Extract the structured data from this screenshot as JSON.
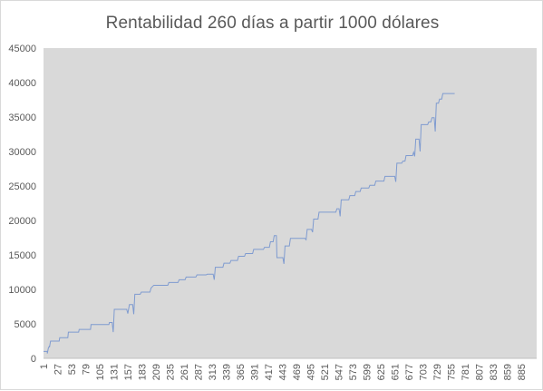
{
  "chart_data": {
    "type": "line",
    "title": "Rentabilidad 260 días a partir 1000 dólares",
    "xlabel": "",
    "ylabel": "",
    "xlim": [
      1,
      907
    ],
    "ylim": [
      0,
      45000
    ],
    "y_ticks": [
      0,
      5000,
      10000,
      15000,
      20000,
      25000,
      30000,
      35000,
      40000,
      45000
    ],
    "x_ticks": [
      1,
      27,
      53,
      79,
      105,
      131,
      157,
      183,
      209,
      235,
      261,
      287,
      313,
      339,
      365,
      391,
      417,
      443,
      469,
      495,
      521,
      547,
      573,
      599,
      625,
      651,
      677,
      703,
      729,
      755,
      781,
      807,
      833,
      859,
      885
    ],
    "grid": false,
    "legend": "none",
    "plot_background": "#d9d9d9",
    "series": [
      {
        "color": "#7f9bd0",
        "points": [
          [
            1,
            1000
          ],
          [
            8,
            1000
          ],
          [
            8,
            700
          ],
          [
            10,
            1500
          ],
          [
            12,
            1800
          ],
          [
            12,
            1600
          ],
          [
            14,
            2500
          ],
          [
            30,
            2500
          ],
          [
            31,
            3000
          ],
          [
            46,
            3000
          ],
          [
            47,
            3800
          ],
          [
            66,
            3800
          ],
          [
            67,
            4200
          ],
          [
            88,
            4200
          ],
          [
            89,
            4900
          ],
          [
            122,
            4900
          ],
          [
            123,
            5200
          ],
          [
            128,
            5200
          ],
          [
            130,
            3800
          ],
          [
            132,
            7100
          ],
          [
            155,
            7100
          ],
          [
            157,
            6500
          ],
          [
            160,
            7800
          ],
          [
            166,
            7800
          ],
          [
            168,
            6400
          ],
          [
            170,
            9300
          ],
          [
            180,
            9300
          ],
          [
            182,
            9600
          ],
          [
            198,
            9600
          ],
          [
            200,
            10200
          ],
          [
            205,
            10600
          ],
          [
            231,
            10600
          ],
          [
            233,
            11000
          ],
          [
            250,
            11000
          ],
          [
            252,
            11400
          ],
          [
            263,
            11400
          ],
          [
            265,
            11800
          ],
          [
            283,
            11800
          ],
          [
            285,
            12100
          ],
          [
            302,
            12100
          ],
          [
            304,
            12200
          ],
          [
            315,
            12200
          ],
          [
            317,
            11400
          ],
          [
            319,
            13200
          ],
          [
            333,
            13200
          ],
          [
            335,
            13800
          ],
          [
            346,
            13800
          ],
          [
            348,
            14200
          ],
          [
            360,
            14200
          ],
          [
            362,
            14800
          ],
          [
            373,
            14800
          ],
          [
            375,
            15200
          ],
          [
            388,
            15200
          ],
          [
            390,
            15800
          ],
          [
            408,
            15800
          ],
          [
            410,
            16100
          ],
          [
            419,
            16100
          ],
          [
            421,
            16900
          ],
          [
            426,
            16900
          ],
          [
            428,
            17800
          ],
          [
            432,
            17800
          ],
          [
            433,
            14600
          ],
          [
            444,
            14600
          ],
          [
            446,
            13700
          ],
          [
            448,
            16300
          ],
          [
            456,
            16300
          ],
          [
            458,
            17400
          ],
          [
            485,
            17400
          ],
          [
            487,
            17200
          ],
          [
            489,
            18700
          ],
          [
            497,
            18700
          ],
          [
            499,
            18300
          ],
          [
            501,
            20200
          ],
          [
            509,
            20200
          ],
          [
            511,
            21200
          ],
          [
            542,
            21200
          ],
          [
            544,
            21700
          ],
          [
            548,
            21700
          ],
          [
            550,
            20600
          ],
          [
            552,
            23000
          ],
          [
            566,
            23000
          ],
          [
            568,
            23600
          ],
          [
            577,
            23600
          ],
          [
            579,
            24200
          ],
          [
            587,
            24200
          ],
          [
            589,
            24700
          ],
          [
            603,
            24700
          ],
          [
            605,
            25100
          ],
          [
            614,
            25100
          ],
          [
            616,
            25700
          ],
          [
            631,
            25700
          ],
          [
            633,
            26400
          ],
          [
            651,
            26400
          ],
          [
            653,
            25600
          ],
          [
            655,
            28300
          ],
          [
            664,
            28300
          ],
          [
            666,
            28600
          ],
          [
            670,
            28600
          ],
          [
            672,
            29400
          ],
          [
            684,
            29400
          ],
          [
            686,
            29900
          ],
          [
            688,
            29300
          ],
          [
            690,
            31800
          ],
          [
            696,
            31800
          ],
          [
            698,
            30000
          ],
          [
            700,
            33900
          ],
          [
            712,
            33900
          ],
          [
            714,
            34300
          ],
          [
            718,
            34300
          ],
          [
            720,
            34900
          ],
          [
            724,
            34900
          ],
          [
            726,
            32900
          ],
          [
            728,
            37000
          ],
          [
            732,
            37000
          ],
          [
            734,
            37600
          ],
          [
            738,
            37600
          ],
          [
            740,
            38400
          ],
          [
            762,
            38400
          ]
        ]
      }
    ]
  }
}
